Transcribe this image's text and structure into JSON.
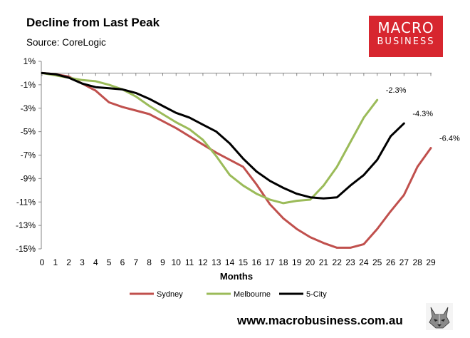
{
  "header": {
    "title": "Decline from Last Peak",
    "subtitle": "Source: CoreLogic"
  },
  "logo": {
    "line1": "MACRO",
    "line2": "BUSINESS",
    "color": "#d7262f"
  },
  "footer": {
    "url": "www.macrobusiness.com.au",
    "mascot_icon": "wolf-icon"
  },
  "chart_data": {
    "type": "line",
    "title": "Decline from Last Peak",
    "subtitle": "Source: CoreLogic",
    "xlabel": "Months",
    "ylabel": "",
    "x": [
      0,
      1,
      2,
      3,
      4,
      5,
      6,
      7,
      8,
      9,
      10,
      11,
      12,
      13,
      14,
      15,
      16,
      17,
      18,
      19,
      20,
      21,
      22,
      23,
      24,
      25,
      26,
      27,
      28,
      29
    ],
    "xlim": [
      0,
      29
    ],
    "ylim": [
      -15,
      1
    ],
    "yticks": [
      1,
      -1,
      -3,
      -5,
      -7,
      -9,
      -11,
      -13,
      -15
    ],
    "ytick_labels": [
      "1%",
      "-1%",
      "-3%",
      "-5%",
      "-7%",
      "-9%",
      "-11%",
      "-13%",
      "-15%"
    ],
    "legend_position": "bottom",
    "series": [
      {
        "name": "Sydney",
        "color": "#c0504d",
        "values": [
          0.0,
          -0.1,
          -0.3,
          -0.9,
          -1.5,
          -2.5,
          -2.9,
          -3.2,
          -3.5,
          -4.1,
          -4.7,
          -5.4,
          -6.1,
          -6.8,
          -7.4,
          -8.0,
          -9.5,
          -11.2,
          -12.4,
          -13.3,
          -14.0,
          -14.5,
          -14.9,
          -14.9,
          -14.6,
          -13.3,
          -11.8,
          -10.4,
          -8.0,
          -6.4
        ],
        "end_label": "-6.4%"
      },
      {
        "name": "Melbourne",
        "color": "#9bbb59",
        "values": [
          0.0,
          -0.2,
          -0.4,
          -0.6,
          -0.7,
          -1.0,
          -1.4,
          -2.0,
          -2.8,
          -3.5,
          -4.2,
          -4.8,
          -5.7,
          -7.1,
          -8.7,
          -9.6,
          -10.3,
          -10.8,
          -11.1,
          -10.9,
          -10.8,
          -9.6,
          -8.0,
          -5.9,
          -3.8,
          -2.3,
          null,
          null,
          null,
          null
        ],
        "end_label": "-2.3%"
      },
      {
        "name": "5-City",
        "color": "#000000",
        "values": [
          0.0,
          -0.1,
          -0.4,
          -0.9,
          -1.2,
          -1.3,
          -1.4,
          -1.7,
          -2.2,
          -2.8,
          -3.4,
          -3.8,
          -4.4,
          -5.0,
          -6.0,
          -7.3,
          -8.4,
          -9.2,
          -9.8,
          -10.3,
          -10.6,
          -10.7,
          -10.6,
          -9.6,
          -8.7,
          -7.4,
          -5.4,
          -4.3,
          null,
          null
        ],
        "end_label": "-4.3%"
      }
    ]
  }
}
